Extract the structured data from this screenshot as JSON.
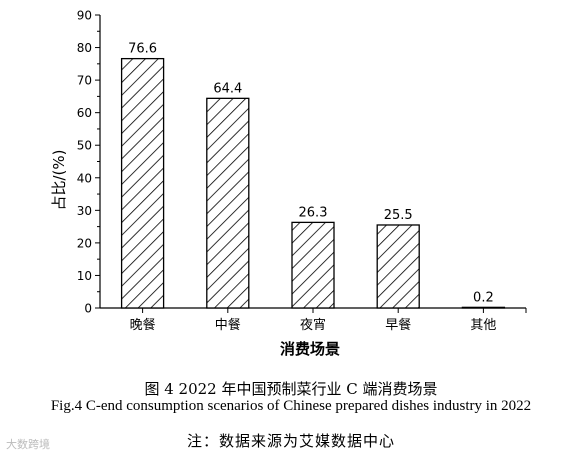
{
  "chart_data": {
    "type": "bar",
    "categories": [
      "晚餐",
      "中餐",
      "夜宵",
      "早餐",
      "其他"
    ],
    "values": [
      76.6,
      64.4,
      26.3,
      25.5,
      0.2
    ],
    "data_labels": [
      "76.6",
      "64.4",
      "26.3",
      "25.5",
      "0.2"
    ],
    "xlabel": "消费场景",
    "ylabel": "占比/(%)",
    "ylim": [
      0,
      90
    ],
    "yticks": [
      0,
      10,
      20,
      30,
      40,
      50,
      60,
      70,
      80,
      90
    ],
    "grid": false,
    "bar_fill": "diagonal hatch",
    "bar_color": "#000000"
  },
  "caption_cn": "图 4 2022 年中国预制菜行业 C 端消费场景",
  "caption_en": "Fig.4 C-end consumption scenarios of Chinese prepared dishes industry in 2022",
  "note": "注：数据来源为艾媒数据中心",
  "watermark": "大数跨境"
}
